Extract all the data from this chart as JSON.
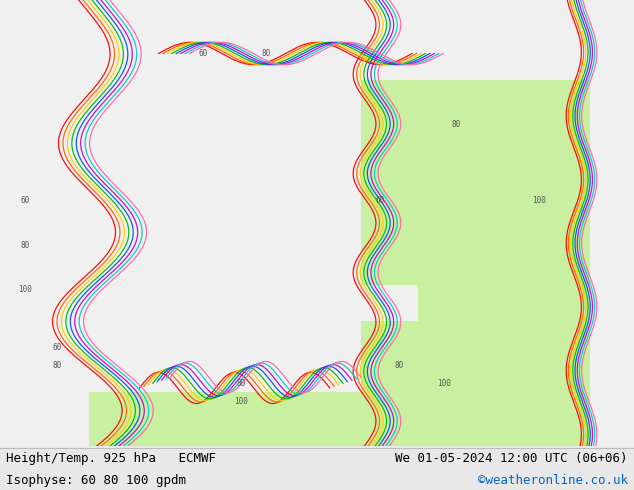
{
  "bottom_left_line1": "Height/Temp. 925 hPa   ECMWF",
  "bottom_left_line2": "Isophyse: 60 80 100 gpdm",
  "bottom_right_line1": "We 01-05-2024 12:00 UTC (06+06)",
  "bottom_right_line2": "©weatheronline.co.uk",
  "bg_color": "#e8e8e8",
  "map_bg_green": "#c8f0a0",
  "map_bg_light": "#f0f0f0",
  "text_color": "#000000",
  "link_color": "#0066cc",
  "font_size": 9,
  "fig_width": 6.34,
  "fig_height": 4.9,
  "dpi": 100
}
